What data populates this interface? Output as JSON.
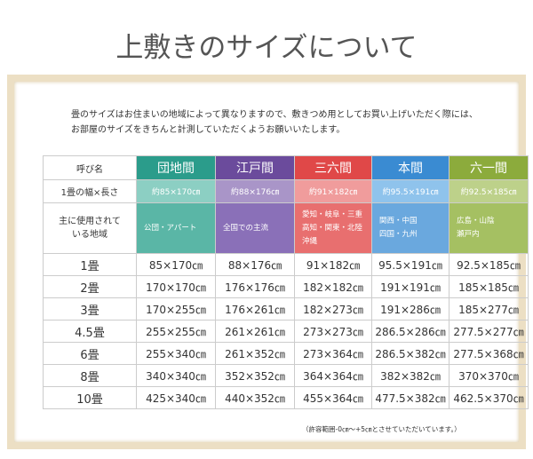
{
  "header": {
    "title": "上敷きのサイズについて"
  },
  "intro": [
    "畳のサイズはお住まいの地域によって異なりますので、敷きつめ用としてお買い上げいただく際には、",
    "お部屋のサイズをきちんと計測していただくようお願いいたします。"
  ],
  "table": {
    "header": [
      "呼び名",
      "団地間",
      "江戸間",
      "三六間",
      "本間",
      "六一間"
    ],
    "size_row": [
      "1畳の幅×長さ",
      "約85×170㎝",
      "約88×176㎝",
      "約91×182㎝",
      "約95.5×191㎝",
      "約92.5×185㎝"
    ],
    "region_row": [
      [
        "主に使用されて",
        "いる地域"
      ],
      [
        "公団・アパート"
      ],
      [
        "全国での主流"
      ],
      [
        "愛知・岐阜・三重",
        "高知・関東・北陸",
        "沖縄"
      ],
      [
        "関西・中国",
        "四国・九州"
      ],
      [
        "広島・山陰",
        "瀬戸内"
      ]
    ],
    "rows": [
      [
        "1畳",
        "85×170㎝",
        "88×176㎝",
        "91×182㎝",
        "95.5×191㎝",
        "92.5×185㎝"
      ],
      [
        "2畳",
        "170×170㎝",
        "176×176㎝",
        "182×182㎝",
        "191×191㎝",
        "185×185㎝"
      ],
      [
        "3畳",
        "170×255㎝",
        "176×261㎝",
        "182×273㎝",
        "191×286㎝",
        "185×277㎝"
      ],
      [
        "4.5畳",
        "255×255㎝",
        "261×261㎝",
        "273×273㎝",
        "286.5×286㎝",
        "277.5×277㎝"
      ],
      [
        "6畳",
        "255×340㎝",
        "261×352㎝",
        "273×364㎝",
        "286.5×382㎝",
        "277.5×368㎝"
      ],
      [
        "8畳",
        "340×340㎝",
        "352×352㎝",
        "364×364㎝",
        "382×382㎝",
        "370×370㎝"
      ],
      [
        "10畳",
        "425×340㎝",
        "440×352㎝",
        "455×364㎝",
        "477.5×382㎝",
        "462.5×370㎝"
      ]
    ]
  },
  "footnote": "（許容範囲-0㎝～+5㎝とさせていただいています。）"
}
